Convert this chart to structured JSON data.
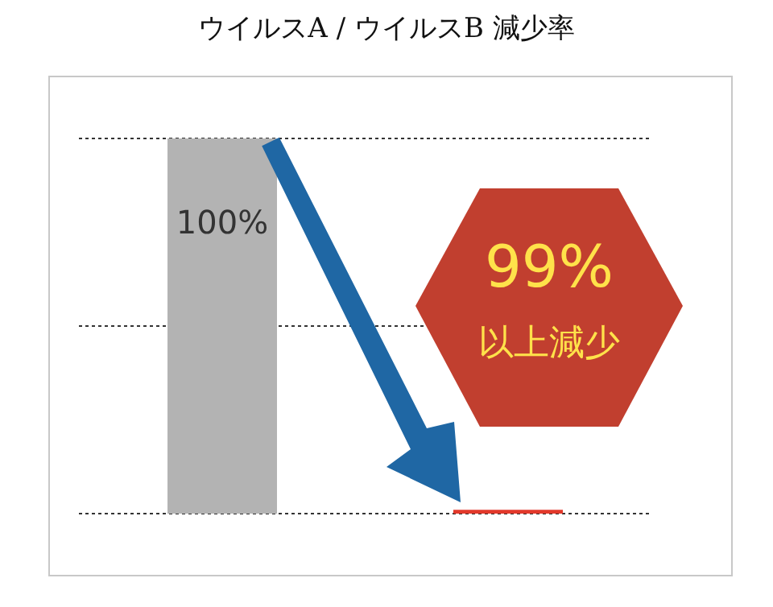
{
  "chart_data": {
    "type": "bar",
    "title": "ウイルスA / ウイルスB  減少率",
    "categories": [
      null,
      null
    ],
    "values": [
      100,
      1
    ],
    "colors": [
      "#b3b3b3",
      "#e2392b"
    ],
    "value_labels": [
      "100%",
      null
    ],
    "ylim": [
      0,
      100
    ],
    "yticks": [
      {
        "value": 0,
        "label": null
      },
      {
        "value": 50,
        "label": null
      },
      {
        "value": 100,
        "label": null
      }
    ],
    "grid": "y",
    "annotations": [
      "99%",
      "以上減少"
    ]
  }
}
